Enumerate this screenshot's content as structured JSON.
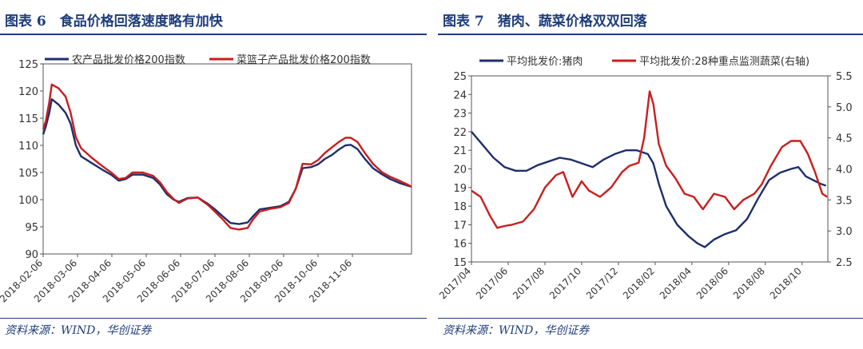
{
  "left": {
    "title": "图表 6　食品价格回落速度略有加快",
    "source": "资料来源：WIND，华创证券",
    "chart_data": {
      "type": "line",
      "ylim": [
        90,
        125
      ],
      "yticks": [
        "90",
        "95",
        "100",
        "105",
        "110",
        "115",
        "120",
        "125"
      ],
      "xlabels": [
        "2018-02-06",
        "2018-03-06",
        "2018-04-06",
        "2018-05-06",
        "2018-06-06",
        "2018-07-06",
        "2018-08-06",
        "2018-09-06",
        "2018-10-06",
        "2018-11-06"
      ],
      "legend_position": "top",
      "series": [
        {
          "name": "农产品批发价格200指数",
          "color": "#1f2f6b",
          "points": [
            [
              0,
              112
            ],
            [
              0.08,
              113.5
            ],
            [
              0.18,
              116
            ],
            [
              0.25,
              118.5
            ],
            [
              0.45,
              117.5
            ],
            [
              0.65,
              116
            ],
            [
              0.8,
              114
            ],
            [
              0.95,
              110
            ],
            [
              1.1,
              108
            ],
            [
              1.4,
              106.8
            ],
            [
              1.7,
              105.6
            ],
            [
              2,
              104.5
            ],
            [
              2.2,
              103.5
            ],
            [
              2.4,
              103.8
            ],
            [
              2.6,
              104.6
            ],
            [
              2.9,
              104.6
            ],
            [
              3.2,
              104
            ],
            [
              3.4,
              102.8
            ],
            [
              3.6,
              101
            ],
            [
              3.8,
              100
            ],
            [
              3.95,
              99.6
            ],
            [
              4.2,
              100.3
            ],
            [
              4.5,
              100.4
            ],
            [
              4.8,
              99.2
            ],
            [
              5,
              98.2
            ],
            [
              5.25,
              96.8
            ],
            [
              5.45,
              95.7
            ],
            [
              5.7,
              95.5
            ],
            [
              5.95,
              95.8
            ],
            [
              6.1,
              96.9
            ],
            [
              6.3,
              98.2
            ],
            [
              6.6,
              98.5
            ],
            [
              6.9,
              98.8
            ],
            [
              7.15,
              99.6
            ],
            [
              7.35,
              102
            ],
            [
              7.55,
              105.8
            ],
            [
              7.8,
              106
            ],
            [
              8,
              106.5
            ],
            [
              8.2,
              107.5
            ],
            [
              8.4,
              108.2
            ],
            [
              8.6,
              109.2
            ],
            [
              8.8,
              110
            ],
            [
              8.95,
              110.1
            ],
            [
              9.15,
              109.3
            ],
            [
              9.35,
              107.6
            ],
            [
              9.6,
              105.8
            ],
            [
              9.85,
              104.7
            ],
            [
              10.1,
              103.8
            ],
            [
              10.4,
              103
            ],
            [
              10.6,
              102.6
            ],
            [
              10.72,
              102.4
            ]
          ]
        },
        {
          "name": "菜篮子产品批发价格200指数",
          "color": "#c81e1e",
          "points": [
            [
              0,
              113
            ],
            [
              0.08,
              114.5
            ],
            [
              0.18,
              118
            ],
            [
              0.25,
              121.2
            ],
            [
              0.45,
              120.5
            ],
            [
              0.65,
              119
            ],
            [
              0.8,
              116
            ],
            [
              0.95,
              111.5
            ],
            [
              1.1,
              109.5
            ],
            [
              1.4,
              107.8
            ],
            [
              1.7,
              106.3
            ],
            [
              2,
              104.9
            ],
            [
              2.2,
              103.8
            ],
            [
              2.4,
              104
            ],
            [
              2.6,
              105
            ],
            [
              2.9,
              105
            ],
            [
              3.2,
              104.4
            ],
            [
              3.4,
              103.2
            ],
            [
              3.6,
              101.4
            ],
            [
              3.8,
              100.1
            ],
            [
              3.95,
              99.4
            ],
            [
              4.2,
              100.2
            ],
            [
              4.5,
              100.4
            ],
            [
              4.8,
              99
            ],
            [
              5,
              97.8
            ],
            [
              5.25,
              96.2
            ],
            [
              5.45,
              94.8
            ],
            [
              5.7,
              94.5
            ],
            [
              5.95,
              94.8
            ],
            [
              6.1,
              96.3
            ],
            [
              6.3,
              97.8
            ],
            [
              6.6,
              98.3
            ],
            [
              6.9,
              98.6
            ],
            [
              7.15,
              99.4
            ],
            [
              7.35,
              102
            ],
            [
              7.55,
              106.6
            ],
            [
              7.8,
              106.5
            ],
            [
              8,
              107.3
            ],
            [
              8.2,
              108.6
            ],
            [
              8.4,
              109.6
            ],
            [
              8.6,
              110.6
            ],
            [
              8.8,
              111.4
            ],
            [
              8.95,
              111.4
            ],
            [
              9.15,
              110.6
            ],
            [
              9.35,
              108.7
            ],
            [
              9.6,
              106.6
            ],
            [
              9.85,
              105.1
            ],
            [
              10.1,
              104.2
            ],
            [
              10.4,
              103.4
            ],
            [
              10.6,
              102.8
            ],
            [
              10.72,
              102.4
            ]
          ]
        }
      ]
    }
  },
  "right": {
    "title": "图表 7　猪肉、蔬菜价格双双回落",
    "source": "资料来源：WIND，华创证券",
    "chart_data": {
      "type": "line",
      "ylim_left": [
        15,
        25
      ],
      "ylim_right": [
        2.5,
        5.5
      ],
      "yticks_left": [
        "15",
        "16",
        "17",
        "18",
        "19",
        "20",
        "21",
        "22",
        "23",
        "24",
        "25"
      ],
      "yticks_right": [
        "2.5",
        "3.0",
        "3.5",
        "4.0",
        "4.5",
        "5.0",
        "5.5"
      ],
      "xlabels": [
        "2017/04",
        "2017/06",
        "2017/08",
        "2017/10",
        "2017/12",
        "2018/02",
        "2018/04",
        "2018/06",
        "2018/08",
        "2018/10"
      ],
      "legend_position": "top",
      "series": [
        {
          "name": "平均批发价:猪肉",
          "axis": "left",
          "color": "#1f2f6b",
          "points": [
            [
              0,
              22
            ],
            [
              0.3,
              21.3
            ],
            [
              0.6,
              20.6
            ],
            [
              0.9,
              20.1
            ],
            [
              1.2,
              19.9
            ],
            [
              1.5,
              19.9
            ],
            [
              1.8,
              20.2
            ],
            [
              2.1,
              20.4
            ],
            [
              2.4,
              20.6
            ],
            [
              2.7,
              20.5
            ],
            [
              3,
              20.3
            ],
            [
              3.3,
              20.1
            ],
            [
              3.6,
              20.5
            ],
            [
              3.9,
              20.8
            ],
            [
              4.2,
              21
            ],
            [
              4.5,
              21
            ],
            [
              4.8,
              20.8
            ],
            [
              4.95,
              20.3
            ],
            [
              5.1,
              19.2
            ],
            [
              5.3,
              18
            ],
            [
              5.6,
              17
            ],
            [
              5.9,
              16.4
            ],
            [
              6.15,
              16
            ],
            [
              6.35,
              15.8
            ],
            [
              6.6,
              16.2
            ],
            [
              6.9,
              16.5
            ],
            [
              7.2,
              16.7
            ],
            [
              7.5,
              17.3
            ],
            [
              7.8,
              18.4
            ],
            [
              8.1,
              19.4
            ],
            [
              8.4,
              19.8
            ],
            [
              8.7,
              20
            ],
            [
              8.9,
              20.1
            ],
            [
              9.1,
              19.6
            ],
            [
              9.3,
              19.4
            ],
            [
              9.5,
              19.2
            ],
            [
              9.65,
              19.1
            ]
          ]
        },
        {
          "name": "平均批发价:28种重点监测蔬菜(右轴)",
          "axis": "right",
          "color": "#c81e1e",
          "points": [
            [
              0,
              3.65
            ],
            [
              0.25,
              3.55
            ],
            [
              0.5,
              3.25
            ],
            [
              0.7,
              3.05
            ],
            [
              0.9,
              3.08
            ],
            [
              1.1,
              3.1
            ],
            [
              1.4,
              3.15
            ],
            [
              1.7,
              3.35
            ],
            [
              2,
              3.7
            ],
            [
              2.3,
              3.9
            ],
            [
              2.5,
              3.95
            ],
            [
              2.75,
              3.55
            ],
            [
              3,
              3.8
            ],
            [
              3.2,
              3.65
            ],
            [
              3.5,
              3.55
            ],
            [
              3.8,
              3.7
            ],
            [
              4.1,
              3.95
            ],
            [
              4.3,
              4.05
            ],
            [
              4.55,
              4.1
            ],
            [
              4.7,
              4.5
            ],
            [
              4.85,
              5.25
            ],
            [
              4.95,
              5.05
            ],
            [
              5.1,
              4.4
            ],
            [
              5.3,
              4.05
            ],
            [
              5.55,
              3.85
            ],
            [
              5.8,
              3.6
            ],
            [
              6.05,
              3.55
            ],
            [
              6.3,
              3.35
            ],
            [
              6.6,
              3.6
            ],
            [
              6.9,
              3.55
            ],
            [
              7.15,
              3.35
            ],
            [
              7.4,
              3.5
            ],
            [
              7.7,
              3.6
            ],
            [
              7.9,
              3.75
            ],
            [
              8.15,
              4.05
            ],
            [
              8.45,
              4.35
            ],
            [
              8.7,
              4.45
            ],
            [
              8.95,
              4.45
            ],
            [
              9.15,
              4.25
            ],
            [
              9.35,
              3.95
            ],
            [
              9.55,
              3.6
            ],
            [
              9.68,
              3.55
            ]
          ]
        }
      ]
    }
  }
}
